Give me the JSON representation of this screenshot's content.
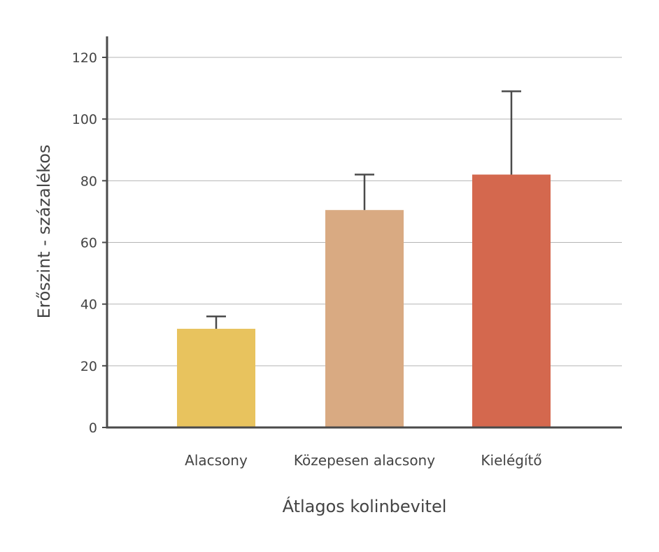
{
  "chart_data": {
    "type": "bar",
    "categories": [
      "Alacsony",
      "Közepesen alacsony",
      "Kielégítő"
    ],
    "values": [
      32,
      70.5,
      82
    ],
    "error_upper": [
      36,
      82,
      109
    ],
    "colors": [
      "#E8C35E",
      "#D9AA82",
      "#D4684E"
    ],
    "xlabel": "Átlagos kolinbevitel",
    "ylabel": "Erőszint - százalékos",
    "ylim": [
      0,
      120
    ],
    "yticks": [
      0,
      20,
      40,
      60,
      80,
      100,
      120
    ],
    "ytick_labels": [
      "0",
      "20",
      "40",
      "60",
      "80",
      "100",
      "120"
    ],
    "grid": true,
    "error_bar_color": "#4a4a4a",
    "axis_color": "#4a4a4a",
    "grid_color": "#b5b5b5"
  }
}
